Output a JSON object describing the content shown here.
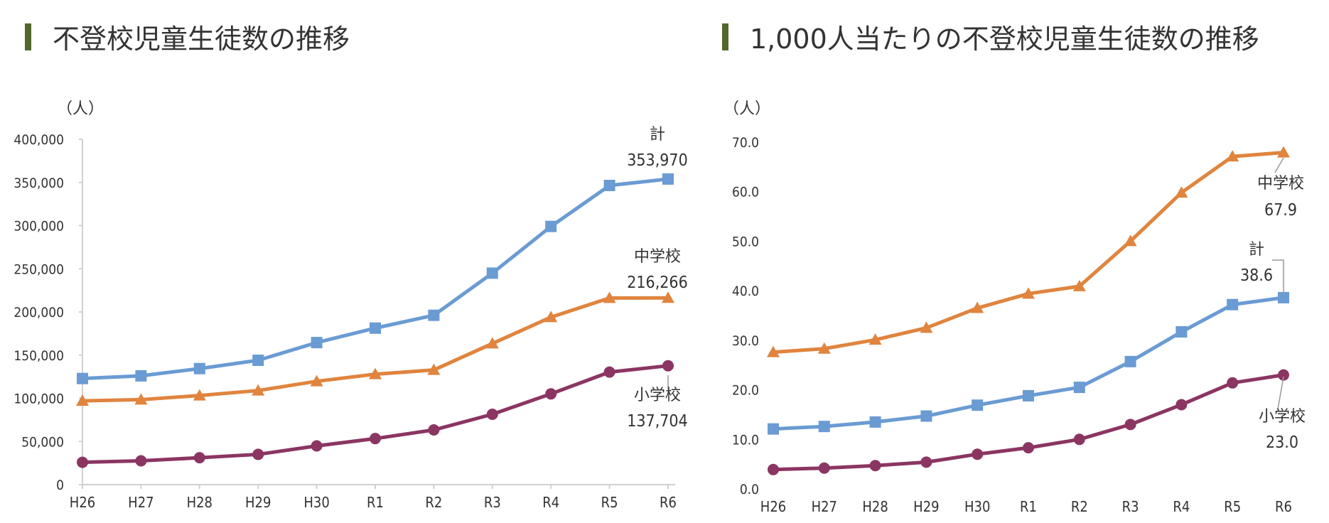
{
  "colors": {
    "total": "#6a9bd3",
    "junior": "#e0843e",
    "elementary": "#8b3562",
    "accent": "#52672c",
    "axis": "#d0d0d0"
  },
  "chart_data": [
    {
      "type": "line",
      "title": "不登校児童生徒数の推移",
      "ylabel": "（人）",
      "categories": [
        "H26",
        "H27",
        "H28",
        "H29",
        "H30",
        "R1",
        "R2",
        "R3",
        "R4",
        "R5",
        "R6"
      ],
      "ylim": [
        0,
        400000
      ],
      "yticks": [
        0,
        50000,
        100000,
        150000,
        200000,
        250000,
        300000,
        350000,
        400000
      ],
      "ytick_labels": [
        "0",
        "50,000",
        "100,000",
        "150,000",
        "200,000",
        "250,000",
        "300,000",
        "350,000",
        "400,000"
      ],
      "series": [
        {
          "key": "total",
          "name": "計",
          "marker": "square",
          "end_label": "353,970",
          "values": [
            122897,
            126009,
            134398,
            144031,
            164528,
            181272,
            196127,
            244940,
            299048,
            346482,
            353970
          ]
        },
        {
          "key": "junior",
          "name": "中学校",
          "marker": "triangle",
          "end_label": "216,266",
          "values": [
            97033,
            98408,
            103235,
            108999,
            119687,
            127922,
            132777,
            163442,
            193936,
            216112,
            216266
          ]
        },
        {
          "key": "elementary",
          "name": "小学校",
          "marker": "circle",
          "end_label": "137,704",
          "values": [
            25864,
            27583,
            31151,
            35032,
            44841,
            53350,
            63350,
            81498,
            105112,
            130370,
            137704
          ]
        }
      ]
    },
    {
      "type": "line",
      "title": "1,000人当たりの不登校児童生徒数の推移",
      "ylabel": "（人）",
      "categories": [
        "H26",
        "H27",
        "H28",
        "H29",
        "H30",
        "R1",
        "R2",
        "R3",
        "R4",
        "R5",
        "R6"
      ],
      "ylim": [
        0,
        70
      ],
      "yticks": [
        0,
        10,
        20,
        30,
        40,
        50,
        60,
        70
      ],
      "ytick_labels": [
        "0.0",
        "10.0",
        "20.0",
        "30.0",
        "40.0",
        "50.0",
        "60.0",
        "70.0"
      ],
      "series": [
        {
          "key": "junior",
          "name": "中学校",
          "marker": "triangle",
          "end_label": "67.9",
          "values": [
            27.6,
            28.3,
            30.1,
            32.5,
            36.5,
            39.4,
            40.9,
            50.0,
            59.8,
            67.1,
            67.9
          ]
        },
        {
          "key": "total",
          "name": "計",
          "marker": "square",
          "end_label": "38.6",
          "values": [
            12.1,
            12.6,
            13.5,
            14.7,
            16.9,
            18.8,
            20.5,
            25.7,
            31.7,
            37.2,
            38.6
          ]
        },
        {
          "key": "elementary",
          "name": "小学校",
          "marker": "circle",
          "end_label": "23.0",
          "values": [
            3.9,
            4.2,
            4.7,
            5.4,
            7.0,
            8.3,
            10.0,
            13.0,
            17.0,
            21.4,
            23.0
          ]
        }
      ]
    }
  ]
}
